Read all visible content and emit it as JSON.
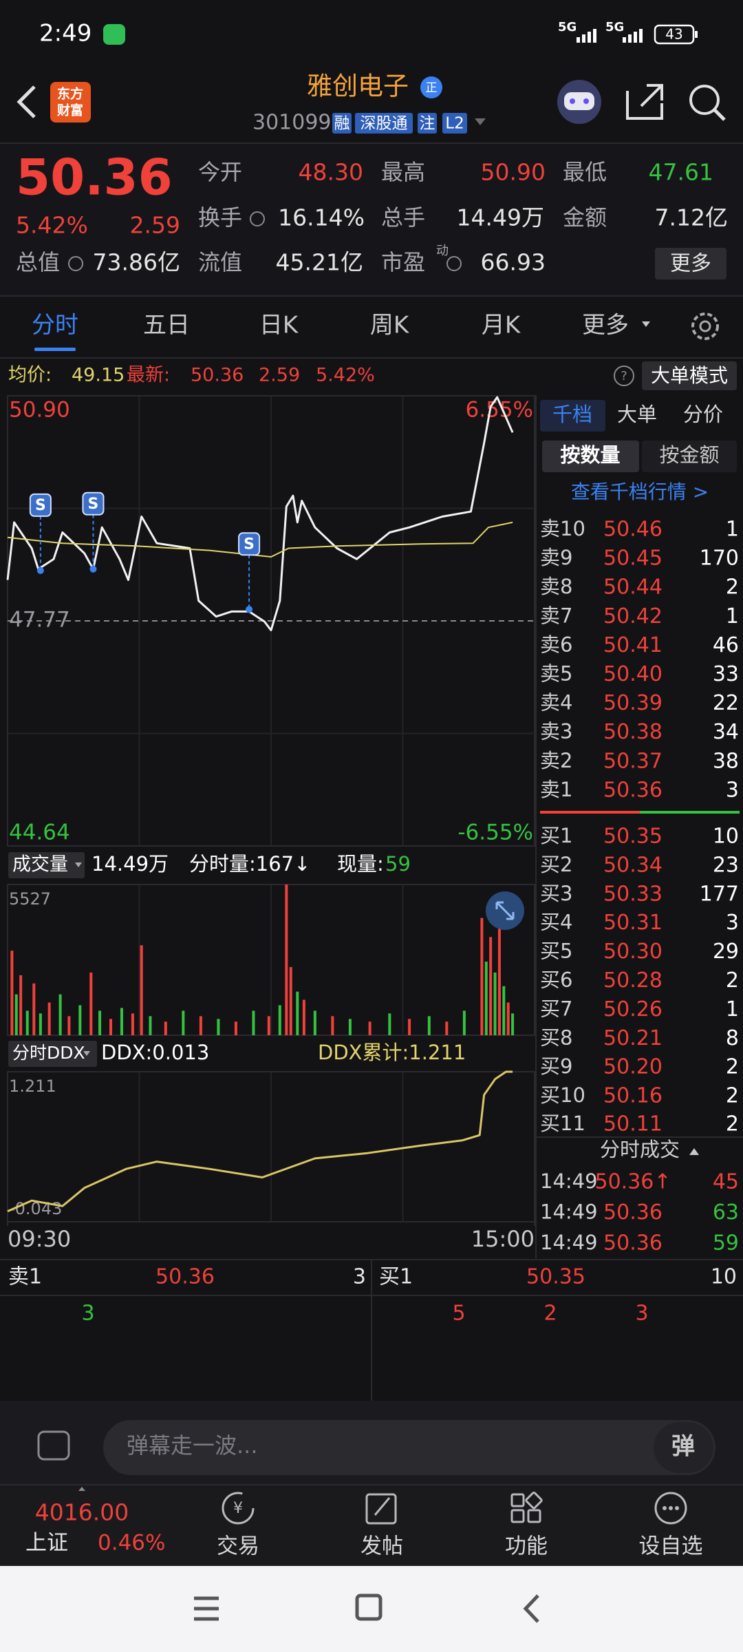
{
  "status_bar": {
    "time": "2:49",
    "network": [
      "5G",
      "5G"
    ],
    "battery": "43"
  },
  "header": {
    "logo": [
      "东方",
      "财富"
    ],
    "title": "雅创电子",
    "badge": "正",
    "code": "301099",
    "tags": [
      "融",
      "深股通",
      "注",
      "L2"
    ]
  },
  "quote": {
    "price": "50.36",
    "change_pct": "5.42%",
    "change": "2.59",
    "fields": [
      {
        "label": "今开",
        "value": "48.30",
        "color": "#f0413a"
      },
      {
        "label": "最高",
        "value": "50.90",
        "color": "#f0413a"
      },
      {
        "label": "最低",
        "value": "47.61",
        "color": "#35c23f"
      },
      {
        "label": "换手",
        "value": "16.14%",
        "color": "#e6e6e6"
      },
      {
        "label": "总手",
        "value": "14.49万",
        "color": "#e6e6e6"
      },
      {
        "label": "金额",
        "value": "7.12亿",
        "color": "#e6e6e6"
      },
      {
        "label": "总值",
        "value": "73.86亿",
        "color": "#e6e6e6"
      },
      {
        "label": "流值",
        "value": "45.21亿",
        "color": "#e6e6e6"
      },
      {
        "label": "市盈",
        "superscript": "动",
        "value": "66.93",
        "color": "#e6e6e6"
      }
    ],
    "more_button": "更多"
  },
  "tabs": [
    "分时",
    "五日",
    "日K",
    "周K",
    "月K",
    "更多"
  ],
  "info_bar": {
    "avg_label": "均价:",
    "avg": "49.15",
    "latest_label": "最新:",
    "latest": "50.36",
    "change": "2.59",
    "change_pct": "5.42%",
    "mode_button": "大单模式"
  },
  "volume_bar": {
    "label": "成交量",
    "total": "14.49万",
    "minute_volume": "分时量:167↓",
    "current_label": "现量:",
    "current": "59"
  },
  "ddx_bar": {
    "label": "分时DDX",
    "ddx": "DDX:0.013",
    "ddx_total": "DDX累计:1.211"
  },
  "chart_data": [
    {
      "type": "line",
      "xlim": [
        0,
        240
      ],
      "ylim": [
        44.64,
        50.9
      ],
      "yticks": [
        {
          "value": 50.9,
          "label": "50.90"
        },
        47.77,
        44.64
      ],
      "y2lim": [
        -6.55,
        6.55
      ],
      "y2ticks": [
        {
          "value": 6.55,
          "label": "6.55%"
        },
        {
          "value": -6.55,
          "label": "-6.55%"
        }
      ],
      "series": [
        {
          "color": "#f2f2f2",
          "x": [
            0,
            3,
            11,
            14,
            21,
            25,
            35,
            39,
            43,
            51,
            55,
            61,
            68,
            83,
            87,
            95,
            102,
            110,
            117,
            120,
            124,
            127,
            130,
            132,
            134,
            140,
            150,
            159,
            174,
            183,
            198,
            211,
            217,
            220,
            223,
            228,
            230
          ],
          "values": [
            48.34,
            49.14,
            48.78,
            48.49,
            48.63,
            49.0,
            48.71,
            48.49,
            49.07,
            48.63,
            48.34,
            49.22,
            48.85,
            48.78,
            48.05,
            47.83,
            47.9,
            47.9,
            47.76,
            47.64,
            48.05,
            49.36,
            49.51,
            49.14,
            49.44,
            49.07,
            48.78,
            48.63,
            49.0,
            49.07,
            49.22,
            49.29,
            50.24,
            50.75,
            50.88,
            50.53,
            50.39
          ]
        },
        {
          "color": "#e3d46a",
          "x": [
            0,
            25,
            59,
            92,
            120,
            128,
            150,
            188,
            212,
            219,
            230
          ],
          "values": [
            48.93,
            48.85,
            48.81,
            48.75,
            48.66,
            48.78,
            48.81,
            48.84,
            48.85,
            49.07,
            49.14
          ]
        }
      ],
      "markers": [
        {
          "label": "S",
          "x": 15,
          "value": 48.47
        },
        {
          "label": "S",
          "x": 39,
          "value": 48.49
        },
        {
          "label": "S",
          "x": 110,
          "value": 47.93
        }
      ]
    },
    {
      "type": "bar",
      "xlim": [
        0,
        240
      ],
      "ylim": [
        0,
        5527
      ],
      "yticks": [
        5527
      ],
      "x": [
        2,
        4,
        6,
        9,
        12,
        15,
        19,
        24,
        28,
        33,
        38,
        42,
        47,
        52,
        57,
        61,
        65,
        72,
        80,
        88,
        96,
        104,
        112,
        119,
        124,
        127,
        129,
        132,
        135,
        140,
        148,
        156,
        165,
        174,
        183,
        192,
        200,
        208,
        216,
        218,
        220,
        222,
        224,
        226,
        228,
        230
      ],
      "values": [
        3100,
        1500,
        2200,
        900,
        1900,
        800,
        1200,
        1500,
        700,
        1100,
        2300,
        900,
        600,
        1000,
        800,
        3300,
        700,
        500,
        900,
        700,
        600,
        500,
        900,
        700,
        1100,
        5527,
        2500,
        1600,
        1300,
        900,
        700,
        600,
        500,
        800,
        600,
        700,
        500,
        900,
        4300,
        2700,
        3600,
        2300,
        3900,
        1800,
        1200,
        800
      ],
      "colors": [
        "#f0413a",
        "#35c23f",
        "#f0413a",
        "#35c23f",
        "#f0413a",
        "#35c23f",
        "#f0413a",
        "#35c23f",
        "#f0413a",
        "#35c23f",
        "#f0413a",
        "#35c23f",
        "#f0413a",
        "#35c23f",
        "#f0413a",
        "#f0413a",
        "#35c23f",
        "#f0413a",
        "#35c23f",
        "#f0413a",
        "#35c23f",
        "#f0413a",
        "#35c23f",
        "#f0413a",
        "#35c23f",
        "#f0413a",
        "#f0413a",
        "#35c23f",
        "#f0413a",
        "#35c23f",
        "#f0413a",
        "#35c23f",
        "#f0413a",
        "#35c23f",
        "#f0413a",
        "#35c23f",
        "#f0413a",
        "#35c23f",
        "#f0413a",
        "#35c23f",
        "#f0413a",
        "#35c23f",
        "#f0413a",
        "#35c23f",
        "#f0413a",
        "#35c23f"
      ]
    },
    {
      "type": "line",
      "xlim": [
        0,
        240
      ],
      "ylim": [
        -0.043,
        1.211
      ],
      "yticks": [
        1.211,
        -0.043
      ],
      "xticks": [
        {
          "value": 0,
          "label": "09:30"
        },
        {
          "value": 240,
          "label": "15:00"
        }
      ],
      "series": [
        {
          "color": "#d9c766",
          "x": [
            0,
            11,
            25,
            35,
            54,
            68,
            92,
            116,
            140,
            164,
            188,
            207,
            215,
            217,
            222,
            227,
            230
          ],
          "values": [
            0.045,
            0.134,
            0.089,
            0.24,
            0.399,
            0.46,
            0.399,
            0.328,
            0.487,
            0.531,
            0.593,
            0.637,
            0.681,
            1.017,
            1.149,
            1.211,
            1.211
          ]
        }
      ]
    }
  ],
  "order_book": {
    "tabs": [
      "千档",
      "大单",
      "分价"
    ],
    "buttons": [
      "按数量",
      "按金额"
    ],
    "link": "查看千档行情 >",
    "asks": [
      {
        "label": "卖10",
        "price": "50.46",
        "volume": "1"
      },
      {
        "label": "卖9",
        "price": "50.45",
        "volume": "170"
      },
      {
        "label": "卖8",
        "price": "50.44",
        "volume": "2"
      },
      {
        "label": "卖7",
        "price": "50.42",
        "volume": "1"
      },
      {
        "label": "卖6",
        "price": "50.41",
        "volume": "46"
      },
      {
        "label": "卖5",
        "price": "50.40",
        "volume": "33"
      },
      {
        "label": "卖4",
        "price": "50.39",
        "volume": "22"
      },
      {
        "label": "卖3",
        "price": "50.38",
        "volume": "34"
      },
      {
        "label": "卖2",
        "price": "50.37",
        "volume": "38"
      },
      {
        "label": "卖1",
        "price": "50.36",
        "volume": "3"
      }
    ],
    "bids": [
      {
        "label": "买1",
        "price": "50.35",
        "volume": "10"
      },
      {
        "label": "买2",
        "price": "50.34",
        "volume": "23"
      },
      {
        "label": "买3",
        "price": "50.33",
        "volume": "177"
      },
      {
        "label": "买4",
        "price": "50.31",
        "volume": "3"
      },
      {
        "label": "买5",
        "price": "50.30",
        "volume": "29"
      },
      {
        "label": "买6",
        "price": "50.28",
        "volume": "2"
      },
      {
        "label": "买7",
        "price": "50.26",
        "volume": "1"
      },
      {
        "label": "买8",
        "price": "50.21",
        "volume": "8"
      },
      {
        "label": "买9",
        "price": "50.20",
        "volume": "2"
      },
      {
        "label": "买10",
        "price": "50.16",
        "volume": "2"
      },
      {
        "label": "买11",
        "price": "50.11",
        "volume": "2"
      }
    ],
    "trades_title": "分时成交",
    "trades": [
      {
        "time": "14:49",
        "price": "50.36↑",
        "volume": "45",
        "color": "#f0413a"
      },
      {
        "time": "14:49",
        "price": "50.36",
        "volume": "63",
        "color": "#35c23f"
      },
      {
        "time": "14:49",
        "price": "50.36",
        "volume": "59",
        "color": "#35c23f"
      }
    ]
  },
  "queue": {
    "ask": {
      "label": "卖1",
      "price": "50.36",
      "volume": "3"
    },
    "bid": {
      "label": "买1",
      "price": "50.35",
      "volume": "10"
    },
    "ask_queue": [
      "3"
    ],
    "bid_queue": [
      "5",
      "2",
      "3"
    ]
  },
  "comment": {
    "placeholder": "弹幕走一波...",
    "button": "弹"
  },
  "bottom_nav": {
    "index_value": "4016.00",
    "index_name": "上证",
    "index_change": "0.46%",
    "items": [
      "交易",
      "发帖",
      "功能",
      "设自选"
    ]
  }
}
